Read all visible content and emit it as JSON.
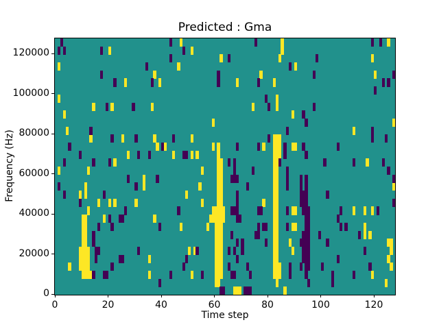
{
  "chart_data": {
    "type": "heatmap",
    "title": "Predicted : Gma",
    "xlabel": "Time step",
    "ylabel": "Frequency (Hz)",
    "xlim": [
      0,
      128
    ],
    "ylim": [
      0,
      128000
    ],
    "x_ticks": [
      0,
      20,
      40,
      60,
      80,
      100,
      120
    ],
    "y_ticks": [
      0,
      20000,
      40000,
      60000,
      80000,
      100000,
      120000
    ],
    "grid_cols": 128,
    "grid_rows": 32,
    "row_height_hz": 4000,
    "legend": "none",
    "grid": "off",
    "colors": {
      "mid": "#21918c",
      "high": "#fde725",
      "low": "#440154",
      "frame": "#000000",
      "page": "#ffffff"
    },
    "cells_high": [
      [
        1,
        15
      ],
      [
        1,
        24
      ],
      [
        1,
        28
      ],
      [
        3,
        22
      ],
      [
        4,
        20
      ],
      [
        5,
        3
      ],
      [
        9,
        3
      ],
      [
        9,
        4
      ],
      [
        9,
        5
      ],
      [
        9,
        12
      ],
      [
        10,
        2
      ],
      [
        10,
        3
      ],
      [
        10,
        4
      ],
      [
        10,
        5
      ],
      [
        10,
        6
      ],
      [
        10,
        7
      ],
      [
        10,
        8
      ],
      [
        10,
        9
      ],
      [
        11,
        2
      ],
      [
        11,
        3
      ],
      [
        11,
        4
      ],
      [
        11,
        5
      ],
      [
        11,
        6
      ],
      [
        11,
        7
      ],
      [
        11,
        8
      ],
      [
        11,
        9
      ],
      [
        11,
        12
      ],
      [
        11,
        13
      ],
      [
        12,
        2
      ],
      [
        12,
        3
      ],
      [
        12,
        4
      ],
      [
        12,
        5
      ],
      [
        12,
        10
      ],
      [
        12,
        15
      ],
      [
        13,
        2
      ],
      [
        13,
        19
      ],
      [
        14,
        23
      ],
      [
        16,
        11
      ],
      [
        18,
        9
      ],
      [
        20,
        11
      ],
      [
        20,
        30
      ],
      [
        21,
        23
      ],
      [
        22,
        11
      ],
      [
        22,
        16
      ],
      [
        25,
        19
      ],
      [
        26,
        26
      ],
      [
        27,
        17
      ],
      [
        30,
        11
      ],
      [
        33,
        13
      ],
      [
        33,
        14
      ],
      [
        35,
        2
      ],
      [
        35,
        4
      ],
      [
        36,
        23
      ],
      [
        37,
        9
      ],
      [
        37,
        19
      ],
      [
        37,
        27
      ],
      [
        38,
        18
      ],
      [
        39,
        26
      ],
      [
        41,
        18
      ],
      [
        44,
        17
      ],
      [
        46,
        28
      ],
      [
        47,
        8
      ],
      [
        47,
        31
      ],
      [
        49,
        12
      ],
      [
        50,
        5
      ],
      [
        51,
        2
      ],
      [
        51,
        17
      ],
      [
        51,
        19
      ],
      [
        51,
        30
      ],
      [
        52,
        5
      ],
      [
        53,
        17
      ],
      [
        54,
        13
      ],
      [
        55,
        11
      ],
      [
        55,
        15
      ],
      [
        57,
        8
      ],
      [
        58,
        9
      ],
      [
        59,
        9
      ],
      [
        59,
        10
      ],
      [
        59,
        18
      ],
      [
        59,
        21
      ],
      [
        60,
        1
      ],
      [
        60,
        2
      ],
      [
        60,
        3
      ],
      [
        60,
        4
      ],
      [
        60,
        5
      ],
      [
        60,
        6
      ],
      [
        60,
        7
      ],
      [
        60,
        8
      ],
      [
        60,
        9
      ],
      [
        60,
        10
      ],
      [
        61,
        1
      ],
      [
        61,
        2
      ],
      [
        61,
        3
      ],
      [
        61,
        4
      ],
      [
        61,
        5
      ],
      [
        61,
        6
      ],
      [
        61,
        7
      ],
      [
        61,
        8
      ],
      [
        61,
        9
      ],
      [
        61,
        10
      ],
      [
        61,
        11
      ],
      [
        61,
        12
      ],
      [
        61,
        13
      ],
      [
        61,
        14
      ],
      [
        61,
        15
      ],
      [
        61,
        16
      ],
      [
        61,
        17
      ],
      [
        61,
        18
      ],
      [
        62,
        2
      ],
      [
        62,
        3
      ],
      [
        62,
        4
      ],
      [
        62,
        5
      ],
      [
        62,
        6
      ],
      [
        62,
        7
      ],
      [
        62,
        8
      ],
      [
        62,
        9
      ],
      [
        62,
        10
      ],
      [
        62,
        11
      ],
      [
        62,
        12
      ],
      [
        62,
        13
      ],
      [
        62,
        14
      ],
      [
        62,
        15
      ],
      [
        62,
        16
      ],
      [
        62,
        29
      ],
      [
        63,
        9
      ],
      [
        63,
        10
      ],
      [
        67,
        0
      ],
      [
        68,
        0
      ],
      [
        68,
        26
      ],
      [
        69,
        0
      ],
      [
        74,
        23
      ],
      [
        77,
        27
      ],
      [
        78,
        11
      ],
      [
        78,
        18
      ],
      [
        82,
        2
      ],
      [
        82,
        3
      ],
      [
        82,
        4
      ],
      [
        82,
        5
      ],
      [
        82,
        6
      ],
      [
        82,
        7
      ],
      [
        82,
        8
      ],
      [
        82,
        9
      ],
      [
        82,
        10
      ],
      [
        82,
        11
      ],
      [
        82,
        12
      ],
      [
        82,
        13
      ],
      [
        82,
        14
      ],
      [
        82,
        15
      ],
      [
        82,
        16
      ],
      [
        82,
        17
      ],
      [
        82,
        18
      ],
      [
        82,
        19
      ],
      [
        82,
        26
      ],
      [
        83,
        1
      ],
      [
        83,
        2
      ],
      [
        83,
        3
      ],
      [
        83,
        4
      ],
      [
        83,
        5
      ],
      [
        83,
        6
      ],
      [
        83,
        7
      ],
      [
        83,
        8
      ],
      [
        83,
        9
      ],
      [
        83,
        10
      ],
      [
        83,
        11
      ],
      [
        83,
        12
      ],
      [
        83,
        13
      ],
      [
        83,
        14
      ],
      [
        83,
        15
      ],
      [
        83,
        16
      ],
      [
        83,
        17
      ],
      [
        83,
        18
      ],
      [
        83,
        19
      ],
      [
        83,
        23
      ],
      [
        83,
        24
      ],
      [
        84,
        2
      ],
      [
        84,
        3
      ],
      [
        84,
        17
      ],
      [
        84,
        18
      ],
      [
        84,
        19
      ],
      [
        84,
        29
      ],
      [
        85,
        30
      ],
      [
        85,
        31
      ],
      [
        86,
        0
      ],
      [
        88,
        6
      ],
      [
        89,
        5
      ],
      [
        89,
        8
      ],
      [
        89,
        10
      ],
      [
        89,
        18
      ],
      [
        89,
        22
      ],
      [
        90,
        8
      ],
      [
        90,
        10
      ],
      [
        90,
        18
      ],
      [
        90,
        28
      ],
      [
        112,
        10
      ],
      [
        112,
        20
      ],
      [
        116,
        7
      ],
      [
        116,
        8
      ],
      [
        116,
        10
      ],
      [
        117,
        16
      ],
      [
        118,
        7
      ],
      [
        119,
        2
      ],
      [
        119,
        10
      ],
      [
        119,
        29
      ],
      [
        120,
        27
      ],
      [
        124,
        1
      ],
      [
        125,
        4
      ],
      [
        125,
        6
      ],
      [
        125,
        31
      ],
      [
        126,
        3
      ],
      [
        126,
        5
      ],
      [
        126,
        6
      ],
      [
        127,
        13
      ],
      [
        127,
        21
      ]
    ],
    "cells_low": [
      [
        1,
        13
      ],
      [
        1,
        30
      ],
      [
        2,
        31
      ],
      [
        3,
        12
      ],
      [
        3,
        16
      ],
      [
        3,
        30
      ],
      [
        5,
        18
      ],
      [
        9,
        11
      ],
      [
        9,
        17
      ],
      [
        13,
        20
      ],
      [
        14,
        2
      ],
      [
        14,
        6
      ],
      [
        14,
        7
      ],
      [
        14,
        16
      ],
      [
        15,
        4
      ],
      [
        15,
        5
      ],
      [
        16,
        5
      ],
      [
        16,
        8
      ],
      [
        17,
        27
      ],
      [
        17,
        30
      ],
      [
        18,
        2
      ],
      [
        18,
        12
      ],
      [
        19,
        2
      ],
      [
        19,
        23
      ],
      [
        20,
        9
      ],
      [
        20,
        16
      ],
      [
        21,
        3
      ],
      [
        21,
        8
      ],
      [
        21,
        19
      ],
      [
        22,
        26
      ],
      [
        24,
        4
      ],
      [
        24,
        9
      ],
      [
        25,
        4
      ],
      [
        25,
        9
      ],
      [
        26,
        10
      ],
      [
        27,
        14
      ],
      [
        29,
        23
      ],
      [
        30,
        13
      ],
      [
        30,
        19
      ],
      [
        31,
        5
      ],
      [
        31,
        17
      ],
      [
        34,
        28
      ],
      [
        35,
        17
      ],
      [
        36,
        26
      ],
      [
        38,
        14
      ],
      [
        39,
        1
      ],
      [
        39,
        8
      ],
      [
        40,
        18
      ],
      [
        43,
        2
      ],
      [
        43,
        29
      ],
      [
        43,
        31
      ],
      [
        44,
        19
      ],
      [
        46,
        10
      ],
      [
        48,
        3
      ],
      [
        48,
        17
      ],
      [
        48,
        30
      ],
      [
        49,
        4
      ],
      [
        49,
        17
      ],
      [
        53,
        5
      ],
      [
        55,
        2
      ],
      [
        61,
        26
      ],
      [
        61,
        27
      ],
      [
        62,
        0
      ],
      [
        63,
        0
      ],
      [
        65,
        3
      ],
      [
        65,
        5
      ],
      [
        65,
        16
      ],
      [
        65,
        29
      ],
      [
        66,
        2
      ],
      [
        66,
        7
      ],
      [
        66,
        10
      ],
      [
        66,
        14
      ],
      [
        67,
        2
      ],
      [
        67,
        5
      ],
      [
        67,
        10
      ],
      [
        67,
        14
      ],
      [
        67,
        15
      ],
      [
        67,
        16
      ],
      [
        68,
        4
      ],
      [
        68,
        6
      ],
      [
        68,
        9
      ],
      [
        68,
        10
      ],
      [
        68,
        11
      ],
      [
        68,
        12
      ],
      [
        68,
        14
      ],
      [
        68,
        18
      ],
      [
        69,
        9
      ],
      [
        70,
        5
      ],
      [
        70,
        6
      ],
      [
        71,
        0
      ],
      [
        72,
        0
      ],
      [
        72,
        3
      ],
      [
        72,
        13
      ],
      [
        73,
        0
      ],
      [
        73,
        2
      ],
      [
        74,
        15
      ],
      [
        75,
        7
      ],
      [
        75,
        31
      ],
      [
        76,
        7
      ],
      [
        76,
        8
      ],
      [
        76,
        10
      ],
      [
        76,
        18
      ],
      [
        76,
        26
      ],
      [
        77,
        10
      ],
      [
        78,
        8
      ],
      [
        79,
        6
      ],
      [
        79,
        8
      ],
      [
        79,
        24
      ],
      [
        80,
        19
      ],
      [
        80,
        23
      ],
      [
        84,
        16
      ],
      [
        86,
        17
      ],
      [
        86,
        18
      ],
      [
        87,
        8
      ],
      [
        87,
        10
      ],
      [
        87,
        13
      ],
      [
        87,
        14
      ],
      [
        87,
        15
      ],
      [
        87,
        20
      ],
      [
        88,
        2
      ],
      [
        88,
        3
      ],
      [
        88,
        28
      ],
      [
        92,
        3
      ],
      [
        92,
        6
      ],
      [
        92,
        11
      ],
      [
        92,
        12
      ],
      [
        92,
        13
      ],
      [
        92,
        14
      ],
      [
        93,
        4
      ],
      [
        93,
        5
      ],
      [
        93,
        6
      ],
      [
        93,
        7
      ],
      [
        93,
        10
      ],
      [
        93,
        11
      ],
      [
        93,
        12
      ],
      [
        93,
        18
      ],
      [
        93,
        22
      ],
      [
        94,
        2
      ],
      [
        94,
        3
      ],
      [
        94,
        4
      ],
      [
        94,
        5
      ],
      [
        94,
        6
      ],
      [
        94,
        7
      ],
      [
        94,
        8
      ],
      [
        94,
        9
      ],
      [
        94,
        10
      ],
      [
        94,
        11
      ],
      [
        94,
        12
      ],
      [
        94,
        13
      ],
      [
        94,
        14
      ],
      [
        94,
        17
      ],
      [
        94,
        21
      ],
      [
        95,
        1
      ],
      [
        95,
        3
      ],
      [
        95,
        4
      ],
      [
        95,
        5
      ],
      [
        95,
        6
      ],
      [
        95,
        7
      ],
      [
        95,
        8
      ],
      [
        95,
        9
      ],
      [
        95,
        10
      ],
      [
        97,
        23
      ],
      [
        97,
        27
      ],
      [
        98,
        29
      ],
      [
        99,
        7
      ],
      [
        100,
        3
      ],
      [
        101,
        16
      ],
      [
        102,
        6
      ],
      [
        102,
        12
      ],
      [
        104,
        1
      ],
      [
        104,
        2
      ],
      [
        106,
        4
      ],
      [
        106,
        9
      ],
      [
        106,
        18
      ],
      [
        107,
        8
      ],
      [
        107,
        10
      ],
      [
        109,
        8
      ],
      [
        112,
        2
      ],
      [
        112,
        16
      ],
      [
        114,
        7
      ],
      [
        116,
        5
      ],
      [
        118,
        3
      ],
      [
        119,
        19
      ],
      [
        119,
        20
      ],
      [
        119,
        31
      ],
      [
        120,
        25
      ],
      [
        121,
        10
      ],
      [
        122,
        31
      ],
      [
        123,
        16
      ],
      [
        123,
        26
      ],
      [
        124,
        19
      ],
      [
        125,
        15
      ],
      [
        125,
        26
      ],
      [
        127,
        11
      ],
      [
        127,
        14
      ],
      [
        127,
        27
      ]
    ]
  }
}
